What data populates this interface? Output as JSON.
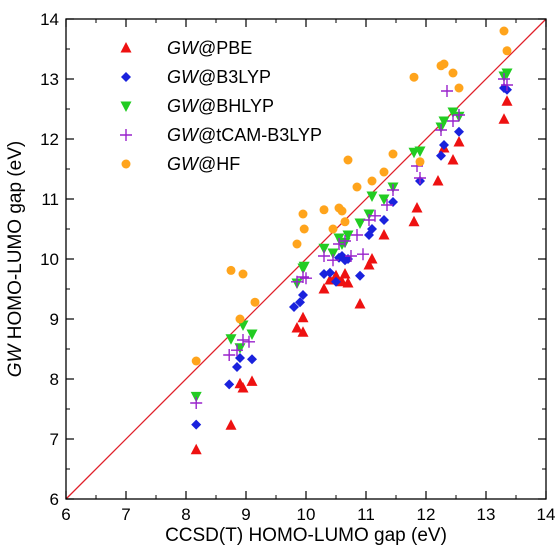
{
  "chart_data": {
    "type": "scatter",
    "xlabel": "CCSD(T) HOMO-LUMO gap  (eV)",
    "ylabel_prefix": "GW",
    "ylabel_rest": " HOMO-LUMO gap (eV)",
    "xlim": [
      6,
      14
    ],
    "ylim": [
      6,
      14
    ],
    "xticks": [
      "6",
      "7",
      "8",
      "9",
      "10",
      "11",
      "12",
      "13",
      "14"
    ],
    "yticks": [
      "6",
      "7",
      "8",
      "9",
      "10",
      "11",
      "12",
      "13",
      "14"
    ],
    "grid": false,
    "legend_position": "top-left",
    "reference_line": {
      "description": "y = x",
      "color": "#e0202a"
    },
    "series": [
      {
        "name_prefix": "GW",
        "name_suffix": "@PBE",
        "marker": "triangle-up",
        "color": "#ee1111",
        "points": [
          [
            8.17,
            6.82
          ],
          [
            8.75,
            7.23
          ],
          [
            8.9,
            7.92
          ],
          [
            8.95,
            7.85
          ],
          [
            9.1,
            7.96
          ],
          [
            9.85,
            8.85
          ],
          [
            9.95,
            8.78
          ],
          [
            9.95,
            9.02
          ],
          [
            10.3,
            9.5
          ],
          [
            10.4,
            9.65
          ],
          [
            10.5,
            9.72
          ],
          [
            10.6,
            9.62
          ],
          [
            10.65,
            9.75
          ],
          [
            10.7,
            9.6
          ],
          [
            10.9,
            9.25
          ],
          [
            11.05,
            9.9
          ],
          [
            11.1,
            10.0
          ],
          [
            11.3,
            10.4
          ],
          [
            11.8,
            10.62
          ],
          [
            11.85,
            10.85
          ],
          [
            12.2,
            11.3
          ],
          [
            12.3,
            11.85
          ],
          [
            12.45,
            11.65
          ],
          [
            12.55,
            11.95
          ],
          [
            13.3,
            12.33
          ],
          [
            13.35,
            12.63
          ]
        ]
      },
      {
        "name_prefix": "GW",
        "name_suffix": "@B3LYP",
        "marker": "diamond",
        "color": "#1a22dd",
        "points": [
          [
            8.17,
            7.24
          ],
          [
            8.72,
            7.91
          ],
          [
            8.85,
            8.2
          ],
          [
            8.9,
            8.35
          ],
          [
            9.1,
            8.33
          ],
          [
            9.8,
            9.2
          ],
          [
            9.9,
            9.28
          ],
          [
            9.95,
            9.4
          ],
          [
            10.3,
            9.75
          ],
          [
            10.4,
            9.77
          ],
          [
            10.5,
            9.62
          ],
          [
            10.55,
            10.02
          ],
          [
            10.6,
            10.05
          ],
          [
            10.65,
            9.98
          ],
          [
            10.7,
            10.0
          ],
          [
            10.9,
            9.72
          ],
          [
            11.05,
            10.4
          ],
          [
            11.1,
            10.5
          ],
          [
            11.3,
            10.65
          ],
          [
            11.45,
            10.95
          ],
          [
            11.9,
            11.3
          ],
          [
            12.25,
            11.72
          ],
          [
            12.3,
            11.9
          ],
          [
            12.55,
            12.12
          ],
          [
            13.3,
            12.85
          ],
          [
            13.35,
            12.82
          ]
        ]
      },
      {
        "name_prefix": "GW",
        "name_suffix": "@BHLYP",
        "marker": "triangle-down",
        "color": "#22cc22",
        "points": [
          [
            8.17,
            7.71
          ],
          [
            8.75,
            8.67
          ],
          [
            8.9,
            8.52
          ],
          [
            8.95,
            8.9
          ],
          [
            9.1,
            8.75
          ],
          [
            9.85,
            9.6
          ],
          [
            9.95,
            9.85
          ],
          [
            9.97,
            9.88
          ],
          [
            10.3,
            10.18
          ],
          [
            10.45,
            10.1
          ],
          [
            10.55,
            10.35
          ],
          [
            10.6,
            10.25
          ],
          [
            10.65,
            10.28
          ],
          [
            10.7,
            10.4
          ],
          [
            10.9,
            10.6
          ],
          [
            11.05,
            10.75
          ],
          [
            11.1,
            11.05
          ],
          [
            11.3,
            11.0
          ],
          [
            11.45,
            11.2
          ],
          [
            11.8,
            11.78
          ],
          [
            11.9,
            11.8
          ],
          [
            12.25,
            12.2
          ],
          [
            12.3,
            12.3
          ],
          [
            12.45,
            12.45
          ],
          [
            12.55,
            12.38
          ],
          [
            13.3,
            13.05
          ],
          [
            13.35,
            13.1
          ]
        ]
      },
      {
        "name_prefix": "GW",
        "name_suffix": "@tCAM-B3LYP",
        "marker": "plus",
        "color": "#9922cc",
        "points": [
          [
            8.17,
            7.6
          ],
          [
            8.72,
            8.4
          ],
          [
            8.85,
            8.48
          ],
          [
            8.95,
            8.65
          ],
          [
            9.05,
            8.62
          ],
          [
            9.85,
            9.62
          ],
          [
            9.95,
            9.7
          ],
          [
            10.0,
            9.68
          ],
          [
            10.3,
            10.05
          ],
          [
            10.45,
            9.98
          ],
          [
            10.55,
            10.25
          ],
          [
            10.65,
            10.3
          ],
          [
            10.75,
            10.05
          ],
          [
            10.85,
            10.4
          ],
          [
            10.95,
            10.08
          ],
          [
            11.05,
            10.65
          ],
          [
            11.15,
            10.72
          ],
          [
            11.35,
            10.9
          ],
          [
            11.45,
            11.15
          ],
          [
            11.85,
            11.55
          ],
          [
            11.9,
            11.35
          ],
          [
            12.25,
            12.15
          ],
          [
            12.35,
            12.8
          ],
          [
            12.45,
            12.3
          ],
          [
            12.55,
            12.4
          ],
          [
            13.3,
            13.0
          ],
          [
            13.35,
            12.9
          ]
        ]
      },
      {
        "name_prefix": "GW",
        "name_suffix": "@HF",
        "marker": "circle",
        "color": "#ffa41c",
        "points": [
          [
            8.17,
            8.3
          ],
          [
            8.75,
            9.81
          ],
          [
            8.9,
            9.0
          ],
          [
            8.95,
            9.75
          ],
          [
            9.15,
            9.28
          ],
          [
            9.85,
            10.25
          ],
          [
            9.95,
            10.75
          ],
          [
            9.97,
            10.5
          ],
          [
            10.3,
            10.82
          ],
          [
            10.45,
            10.5
          ],
          [
            10.55,
            10.85
          ],
          [
            10.6,
            10.8
          ],
          [
            10.65,
            10.62
          ],
          [
            10.7,
            11.65
          ],
          [
            10.85,
            11.2
          ],
          [
            11.1,
            11.3
          ],
          [
            11.3,
            11.45
          ],
          [
            11.45,
            11.75
          ],
          [
            11.8,
            13.03
          ],
          [
            11.9,
            11.62
          ],
          [
            12.25,
            13.22
          ],
          [
            12.3,
            13.25
          ],
          [
            12.45,
            13.1
          ],
          [
            12.55,
            12.85
          ],
          [
            13.3,
            13.8
          ],
          [
            13.35,
            13.47
          ]
        ]
      }
    ]
  }
}
